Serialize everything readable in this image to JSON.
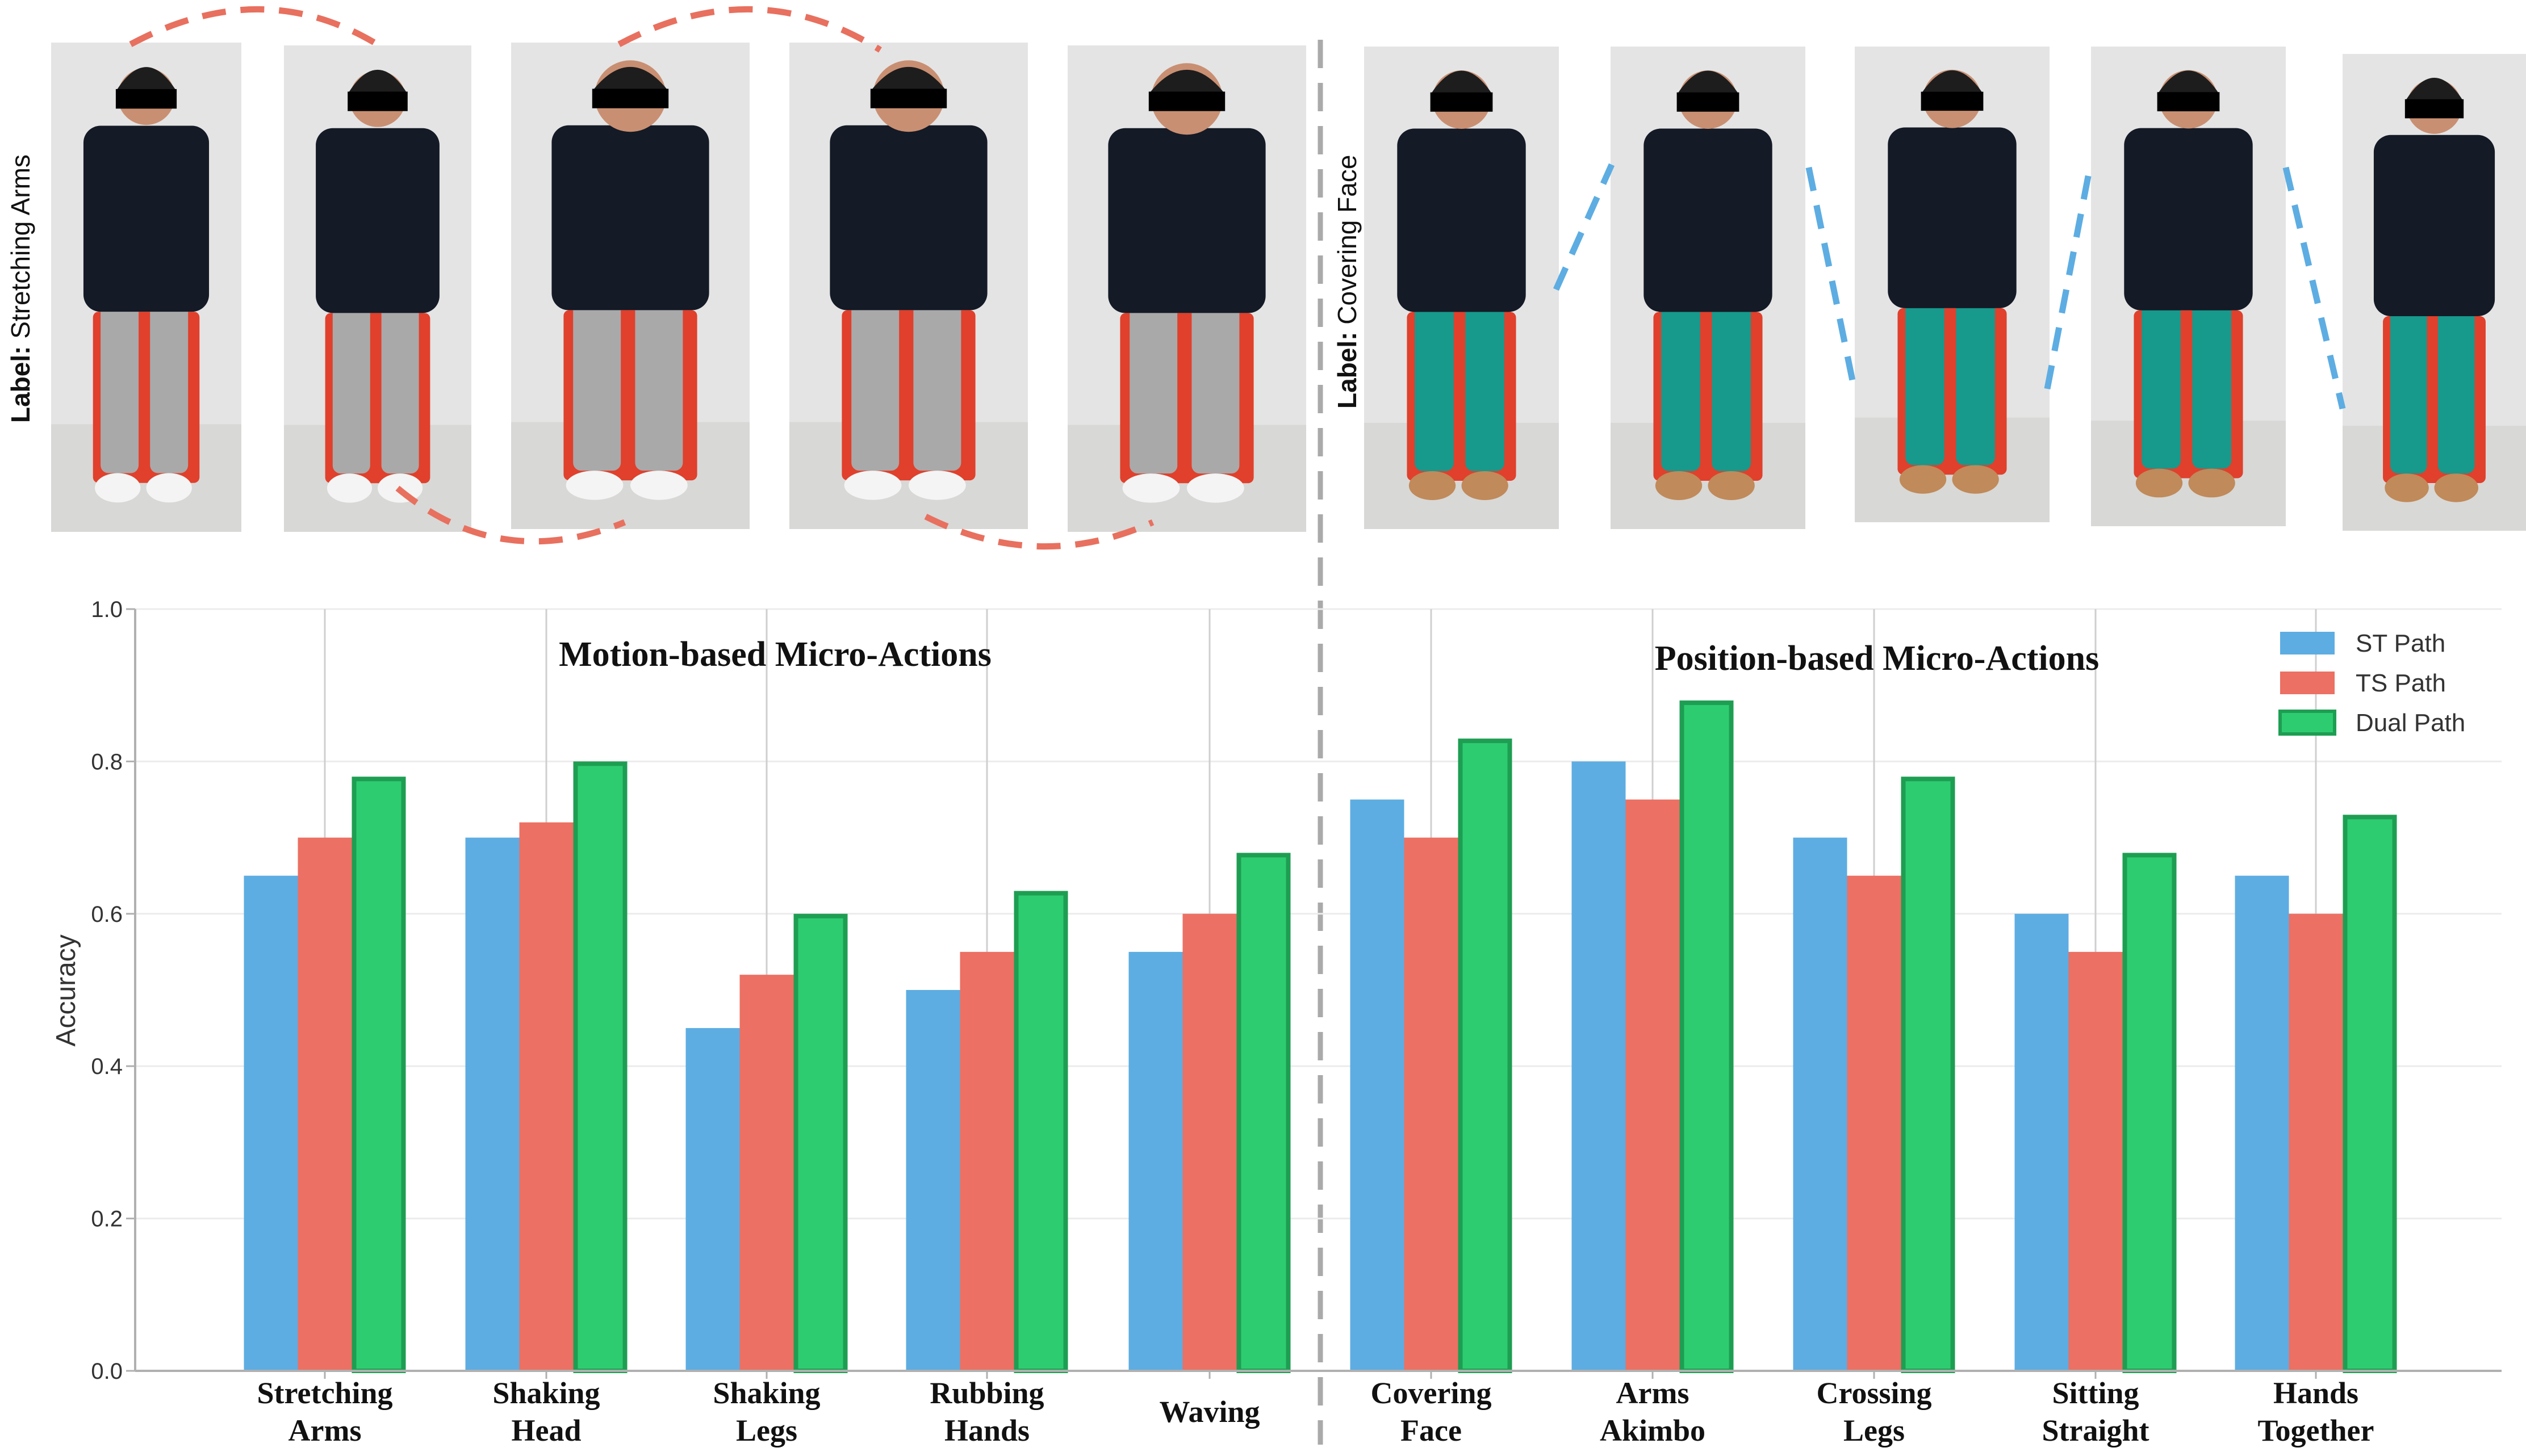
{
  "panels": {
    "left_label_prefix": "Label:",
    "left_label_value": "Stretching Arms",
    "right_label_prefix": "Label:",
    "right_label_value": "Covering Face"
  },
  "colors": {
    "st": "#5dade2",
    "ts": "#ec7063",
    "dual": "#2ecc71",
    "dual_edge": "#1e9e52",
    "red_path": "#e8705f",
    "blue_path": "#5dade2",
    "divider": "#aaaaaa"
  },
  "icons": {
    "person": "person-figure-icon",
    "censor": "black-bar-icon"
  },
  "chart_data": {
    "type": "bar",
    "ylabel": "Accuracy",
    "ylim": [
      0,
      1.0
    ],
    "yticks": [
      "0.0",
      "0.2",
      "0.4",
      "0.6",
      "0.8",
      "1.0"
    ],
    "grid": true,
    "legend_position": "top-right",
    "group_titles": [
      "Motion-based Micro-Actions",
      "Position-based Micro-Actions"
    ],
    "categories": [
      [
        "Stretching",
        "Arms"
      ],
      [
        "Shaking",
        "Head"
      ],
      [
        "Shaking",
        "Legs"
      ],
      [
        "Rubbing",
        "Hands"
      ],
      [
        "Waving"
      ],
      [
        "Covering",
        "Face"
      ],
      [
        "Arms",
        "Akimbo"
      ],
      [
        "Crossing",
        "Legs"
      ],
      [
        "Sitting",
        "Straight"
      ],
      [
        "Hands",
        "Together"
      ]
    ],
    "series": [
      {
        "name": "ST Path",
        "values": [
          0.65,
          0.7,
          0.45,
          0.5,
          0.55,
          0.75,
          0.8,
          0.7,
          0.6,
          0.65
        ]
      },
      {
        "name": "TS Path",
        "values": [
          0.7,
          0.72,
          0.52,
          0.55,
          0.6,
          0.7,
          0.75,
          0.65,
          0.55,
          0.6
        ]
      },
      {
        "name": "Dual Path",
        "values": [
          0.78,
          0.8,
          0.6,
          0.63,
          0.68,
          0.83,
          0.88,
          0.78,
          0.68,
          0.73
        ]
      }
    ]
  }
}
